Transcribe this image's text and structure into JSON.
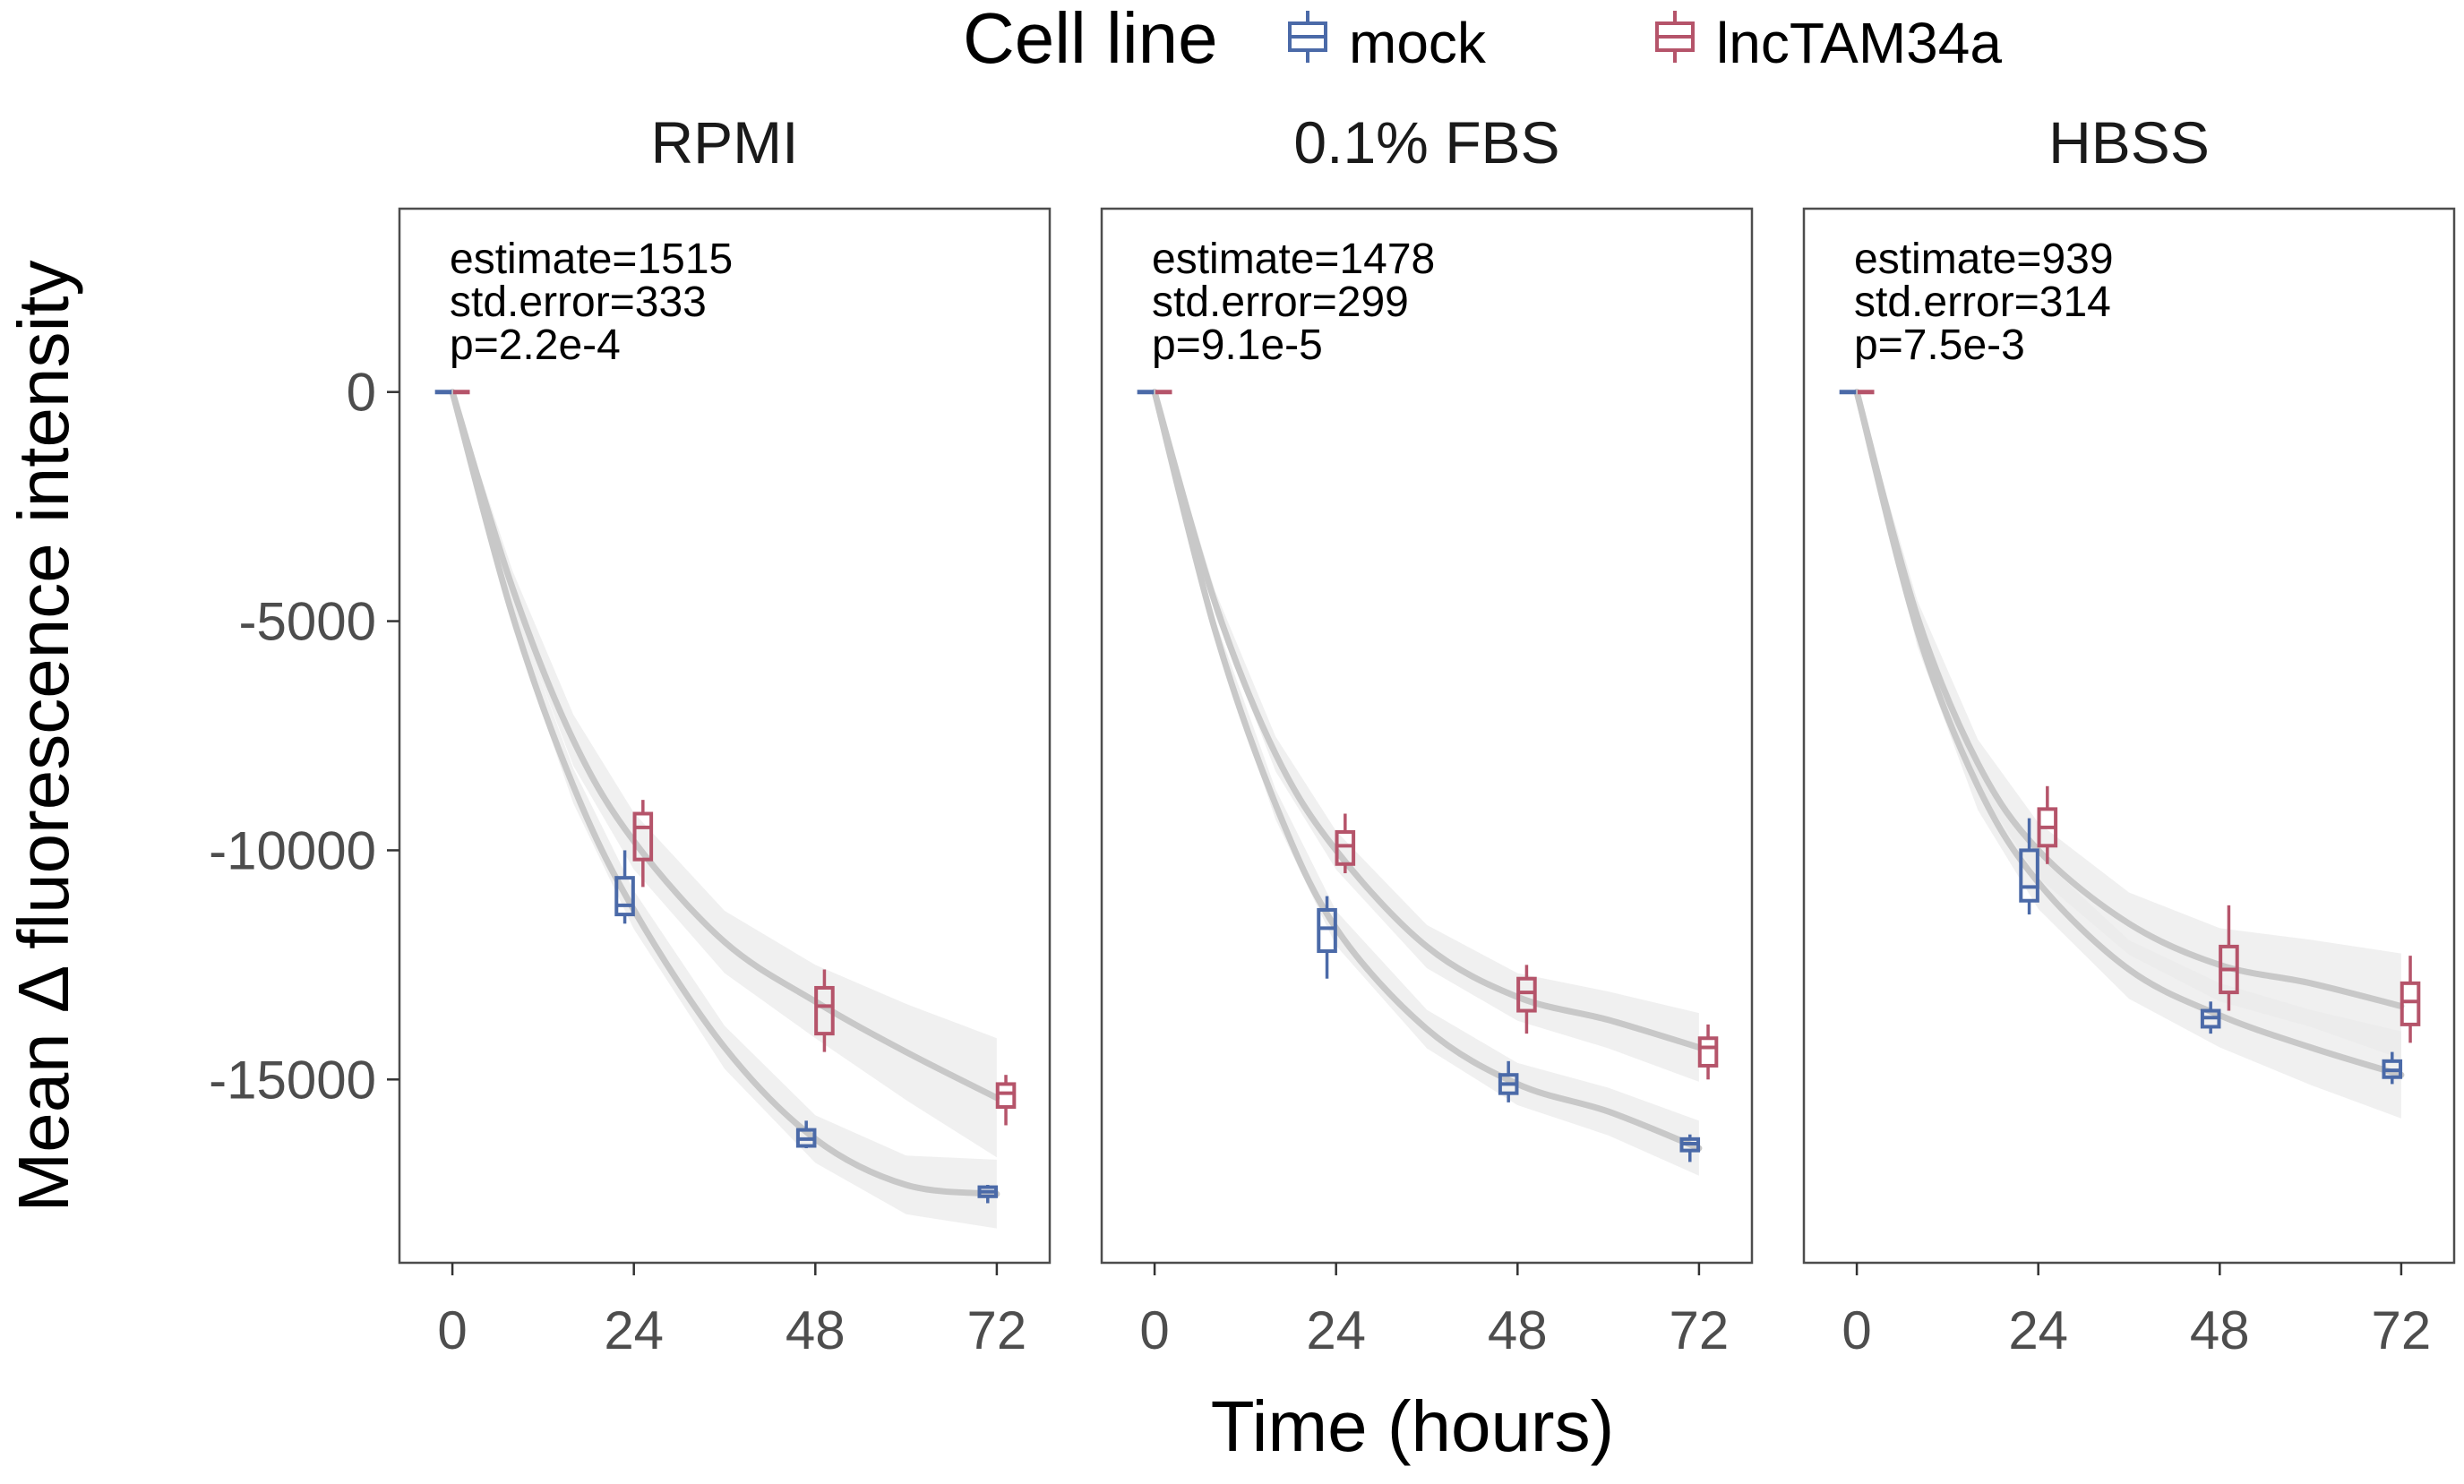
{
  "legend": {
    "title": "Cell line",
    "items": [
      {
        "label": "mock",
        "color": "#4b6aa8"
      },
      {
        "label": "lncTAM34a",
        "color": "#b5546a"
      }
    ]
  },
  "xlabel": "Time (hours)",
  "ylabel": "Mean Δ fluorescence intensity",
  "chart_data": {
    "type": "box",
    "facets": [
      "RPMI",
      "0.1% FBS",
      "HBSS"
    ],
    "x_ticks": [
      0,
      24,
      48,
      72
    ],
    "y_ticks": [
      0,
      -5000,
      -10000,
      -15000
    ],
    "y_tick_labels": [
      "0",
      "-5000",
      "-10000",
      "-15000"
    ],
    "xlim": [
      -7,
      79
    ],
    "ylim": [
      -19000,
      4000
    ],
    "grid": false,
    "legend_position": "top",
    "smooth_color": "#c8c8c8",
    "ribbon_color": "#ebebeb",
    "panels": [
      {
        "title": "RPMI",
        "annotation": [
          "estimate=1515",
          "std.error=333",
          "p=2.2e-4"
        ],
        "series": [
          {
            "name": "mock",
            "boxes": [
              {
                "x": 0,
                "min": 0,
                "q1": 0,
                "median": 0,
                "q3": 0,
                "max": 0
              },
              {
                "x": 24,
                "min": -11600,
                "q1": -11400,
                "median": -11200,
                "q3": -10600,
                "max": -10000
              },
              {
                "x": 48,
                "min": -16500,
                "q1": -16450,
                "median": -16300,
                "q3": -16100,
                "max": -15900
              },
              {
                "x": 72,
                "min": -17700,
                "q1": -17550,
                "median": -17450,
                "q3": -17350,
                "max": -17300
              }
            ],
            "fit": [
              [
                0,
                0
              ],
              [
                8,
                -4900
              ],
              [
                16,
                -8600
              ],
              [
                24,
                -11300
              ],
              [
                36,
                -14300
              ],
              [
                48,
                -16300
              ],
              [
                60,
                -17300
              ],
              [
                72,
                -17500
              ]
            ],
            "ribbon_half_width": [
              0,
              250,
              380,
              420,
              470,
              520,
              640,
              750
            ]
          },
          {
            "name": "lncTAM34a",
            "boxes": [
              {
                "x": 0,
                "min": 0,
                "q1": 0,
                "median": 0,
                "q3": 0,
                "max": 0
              },
              {
                "x": 24,
                "min": -10800,
                "q1": -10200,
                "median": -9500,
                "q3": -9200,
                "max": -8900
              },
              {
                "x": 48,
                "min": -14400,
                "q1": -14000,
                "median": -13400,
                "q3": -13000,
                "max": -12600
              },
              {
                "x": 72,
                "min": -16000,
                "q1": -15600,
                "median": -15300,
                "q3": -15100,
                "max": -14900
              }
            ],
            "fit": [
              [
                0,
                0
              ],
              [
                8,
                -4300
              ],
              [
                16,
                -7600
              ],
              [
                24,
                -9800
              ],
              [
                36,
                -12000
              ],
              [
                48,
                -13300
              ],
              [
                60,
                -14400
              ],
              [
                72,
                -15400
              ]
            ],
            "ribbon_half_width": [
              0,
              380,
              560,
              620,
              680,
              800,
              1050,
              1300
            ]
          }
        ]
      },
      {
        "title": "0.1% FBS",
        "annotation": [
          "estimate=1478",
          "std.error=299",
          "p=9.1e-5"
        ],
        "series": [
          {
            "name": "mock",
            "boxes": [
              {
                "x": 0,
                "min": 0,
                "q1": 0,
                "median": 0,
                "q3": 0,
                "max": 0
              },
              {
                "x": 24,
                "min": -12800,
                "q1": -12200,
                "median": -11700,
                "q3": -11300,
                "max": -11000
              },
              {
                "x": 48,
                "min": -15500,
                "q1": -15300,
                "median": -15100,
                "q3": -14900,
                "max": -14600
              },
              {
                "x": 72,
                "min": -16800,
                "q1": -16550,
                "median": -16400,
                "q3": -16300,
                "max": -16200
              }
            ],
            "fit": [
              [
                0,
                0
              ],
              [
                8,
                -5200
              ],
              [
                16,
                -9000
              ],
              [
                24,
                -11700
              ],
              [
                36,
                -13900
              ],
              [
                48,
                -15100
              ],
              [
                60,
                -15700
              ],
              [
                72,
                -16500
              ]
            ],
            "ribbon_half_width": [
              0,
              230,
              330,
              380,
              420,
              460,
              520,
              600
            ]
          },
          {
            "name": "lncTAM34a",
            "boxes": [
              {
                "x": 0,
                "min": 0,
                "q1": 0,
                "median": 0,
                "q3": 0,
                "max": 0
              },
              {
                "x": 24,
                "min": -10500,
                "q1": -10300,
                "median": -9900,
                "q3": -9600,
                "max": -9200
              },
              {
                "x": 48,
                "min": -14000,
                "q1": -13500,
                "median": -13100,
                "q3": -12800,
                "max": -12500
              },
              {
                "x": 72,
                "min": -15000,
                "q1": -14700,
                "median": -14300,
                "q3": -14100,
                "max": -13800
              }
            ],
            "fit": [
              [
                0,
                0
              ],
              [
                8,
                -4600
              ],
              [
                16,
                -7900
              ],
              [
                24,
                -10000
              ],
              [
                36,
                -12100
              ],
              [
                48,
                -13200
              ],
              [
                60,
                -13700
              ],
              [
                72,
                -14300
              ]
            ],
            "ribbon_half_width": [
              0,
              260,
              380,
              420,
              470,
              520,
              620,
              750
            ]
          }
        ]
      },
      {
        "title": "HBSS",
        "annotation": [
          "estimate=939",
          "std.error=314",
          "p=7.5e-3"
        ],
        "series": [
          {
            "name": "mock",
            "boxes": [
              {
                "x": 0,
                "min": 0,
                "q1": 0,
                "median": 0,
                "q3": 0,
                "max": 0
              },
              {
                "x": 24,
                "min": -11400,
                "q1": -11100,
                "median": -10800,
                "q3": -10000,
                "max": -9300
              },
              {
                "x": 48,
                "min": -14000,
                "q1": -13850,
                "median": -13650,
                "q3": -13500,
                "max": -13300
              },
              {
                "x": 72,
                "min": -15100,
                "q1": -14950,
                "median": -14800,
                "q3": -14600,
                "max": -14400
              }
            ],
            "fit": [
              [
                0,
                0
              ],
              [
                8,
                -5200
              ],
              [
                16,
                -8600
              ],
              [
                24,
                -10700
              ],
              [
                36,
                -12600
              ],
              [
                48,
                -13600
              ],
              [
                60,
                -14300
              ],
              [
                72,
                -14900
              ]
            ],
            "ribbon_half_width": [
              0,
              350,
              520,
              580,
              640,
              700,
              820,
              950
            ]
          },
          {
            "name": "lncTAM34a",
            "boxes": [
              {
                "x": 0,
                "min": 0,
                "q1": 0,
                "median": 0,
                "q3": 0,
                "max": 0
              },
              {
                "x": 24,
                "min": -10300,
                "q1": -9900,
                "median": -9500,
                "q3": -9100,
                "max": -8600
              },
              {
                "x": 48,
                "min": -13500,
                "q1": -13100,
                "median": -12600,
                "q3": -12100,
                "max": -11200
              },
              {
                "x": 72,
                "min": -14200,
                "q1": -13800,
                "median": -13300,
                "q3": -12900,
                "max": -12300
              }
            ],
            "fit": [
              [
                0,
                0
              ],
              [
                8,
                -4900
              ],
              [
                16,
                -8100
              ],
              [
                24,
                -10000
              ],
              [
                36,
                -11600
              ],
              [
                48,
                -12500
              ],
              [
                60,
                -12900
              ],
              [
                72,
                -13400
              ]
            ],
            "ribbon_half_width": [
              0,
              350,
              520,
              600,
              680,
              800,
              950,
              1150
            ]
          }
        ]
      }
    ]
  }
}
